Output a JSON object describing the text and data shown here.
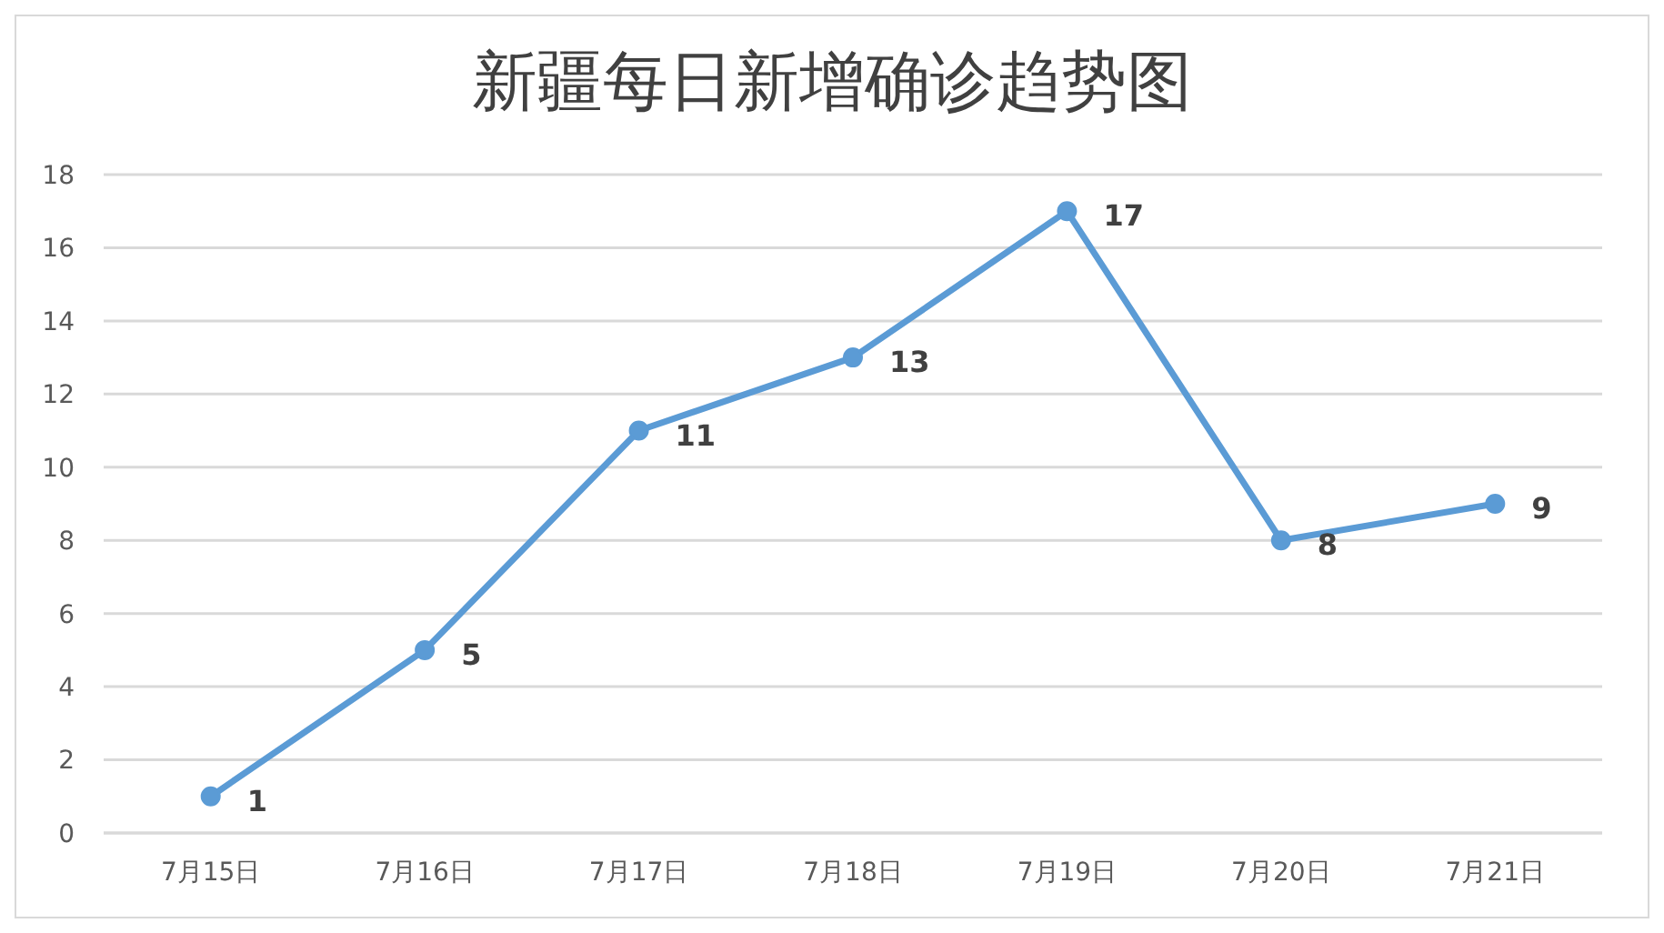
{
  "chart_data": {
    "type": "line",
    "title": "新疆每日新增确诊趋势图",
    "categories": [
      "7月15日",
      "7月16日",
      "7月17日",
      "7月18日",
      "7月19日",
      "7月20日",
      "7月21日"
    ],
    "series": [
      {
        "color": "#5b9bd5",
        "values": [
          1,
          5,
          11,
          13,
          17,
          8,
          9
        ]
      }
    ],
    "ylim": [
      0,
      18
    ],
    "yticks": [
      0,
      2,
      4,
      6,
      8,
      10,
      12,
      14,
      16,
      18
    ],
    "grid": "y",
    "marker": "circle",
    "line_style": "solid",
    "data_labels": true,
    "legend": false
  }
}
